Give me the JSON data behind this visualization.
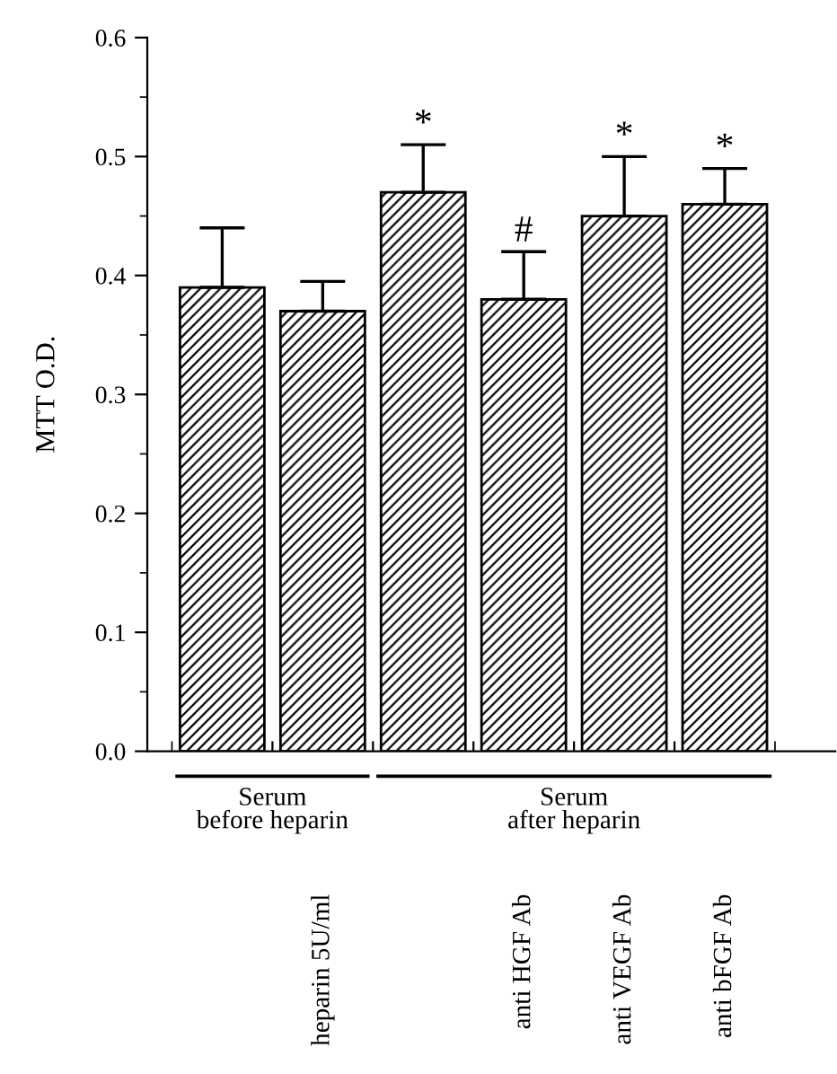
{
  "chart_data": {
    "type": "bar",
    "categories": [
      null,
      "heparin 5U/ml",
      null,
      "anti HGF Ab",
      "anti VEGF Ab",
      "anti bFGF Ab"
    ],
    "values": [
      0.39,
      0.37,
      0.47,
      0.38,
      0.45,
      0.46
    ],
    "errors": [
      [
        0.39,
        0.44
      ],
      [
        0.37,
        0.395
      ],
      [
        0.47,
        0.51
      ],
      [
        0.38,
        0.42
      ],
      [
        0.45,
        0.5
      ],
      [
        0.46,
        0.49
      ]
    ],
    "color": "#000000",
    "ylabel": "MTT O.D.",
    "ylim": [
      0,
      0.6
    ],
    "yticks": [
      {
        "value": 0,
        "label": "0.0"
      },
      0.1,
      0.2,
      0.3,
      0.4,
      0.5,
      0.6
    ],
    "annotations": [
      "*",
      "#",
      "*",
      "*",
      "Serum\nbefore heparin",
      "Serum\nafter heparin"
    ],
    "grid": false
  }
}
